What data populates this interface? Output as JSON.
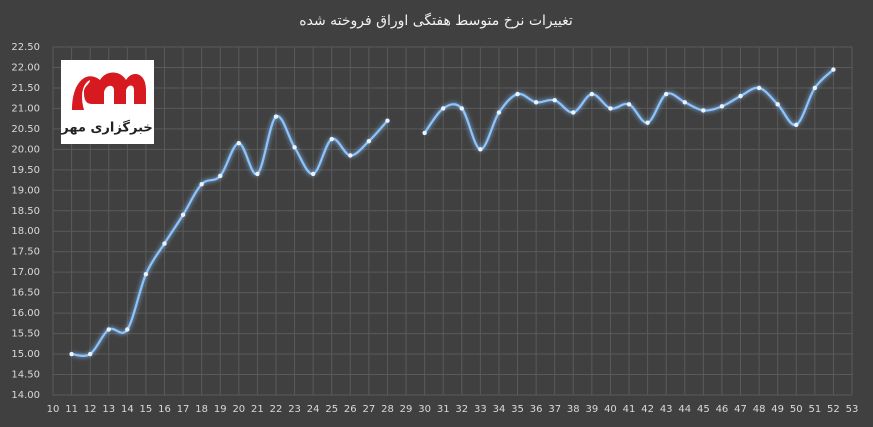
{
  "chart_data": {
    "type": "line",
    "title": "تغییرات نرخ متوسط هفتگی اوراق فروخته شده",
    "logo_text": "خبرگزاری مهر",
    "x": [
      11,
      12,
      13,
      14,
      15,
      16,
      17,
      18,
      19,
      20,
      21,
      22,
      23,
      24,
      25,
      26,
      27,
      28,
      29,
      30,
      31,
      32,
      33,
      34,
      35,
      36,
      37,
      38,
      39,
      40,
      41,
      42,
      43,
      44,
      45,
      46,
      47,
      48,
      49,
      50,
      51,
      52
    ],
    "series": [
      {
        "name": "نرخ متوسط",
        "color": "#8cc4ff",
        "values": [
          15.0,
          15.0,
          15.6,
          15.6,
          16.95,
          17.7,
          18.4,
          19.15,
          19.35,
          20.15,
          19.4,
          20.8,
          20.05,
          19.4,
          20.25,
          19.85,
          20.2,
          20.7,
          null,
          20.4,
          21.0,
          21.0,
          20.0,
          20.9,
          21.35,
          21.15,
          21.2,
          20.9,
          21.35,
          21.0,
          21.1,
          20.65,
          21.35,
          21.15,
          20.95,
          21.05,
          21.3,
          21.5,
          21.1,
          20.6,
          21.5,
          21.95
        ]
      }
    ],
    "xlim": [
      10,
      53
    ],
    "xticks": [
      10,
      11,
      12,
      13,
      14,
      15,
      16,
      17,
      18,
      19,
      20,
      21,
      22,
      23,
      24,
      25,
      26,
      27,
      28,
      29,
      30,
      31,
      32,
      33,
      34,
      35,
      36,
      37,
      38,
      39,
      40,
      41,
      42,
      43,
      44,
      45,
      46,
      47,
      48,
      49,
      50,
      51,
      52,
      53
    ],
    "ylim": [
      14,
      22.5
    ],
    "yticks": [
      {
        "value": 14,
        "label": "14.00"
      },
      {
        "value": 14.5,
        "label": "14.50"
      },
      {
        "value": 15,
        "label": "15.00"
      },
      {
        "value": 15.5,
        "label": "15.50"
      },
      {
        "value": 16,
        "label": "16.00"
      },
      {
        "value": 16.5,
        "label": "16.50"
      },
      {
        "value": 17,
        "label": "17.00"
      },
      {
        "value": 17.5,
        "label": "17.50"
      },
      {
        "value": 18,
        "label": "18.00"
      },
      {
        "value": 18.5,
        "label": "18.50"
      },
      {
        "value": 19,
        "label": "19.00"
      },
      {
        "value": 19.5,
        "label": "19.50"
      },
      {
        "value": 20,
        "label": "20.00"
      },
      {
        "value": 20.5,
        "label": "20.50"
      },
      {
        "value": 21,
        "label": "21.00"
      },
      {
        "value": 21.5,
        "label": "21.50"
      },
      {
        "value": 22,
        "label": "22.00"
      },
      {
        "value": 22.5,
        "label": "22.50"
      }
    ],
    "grid": true
  }
}
